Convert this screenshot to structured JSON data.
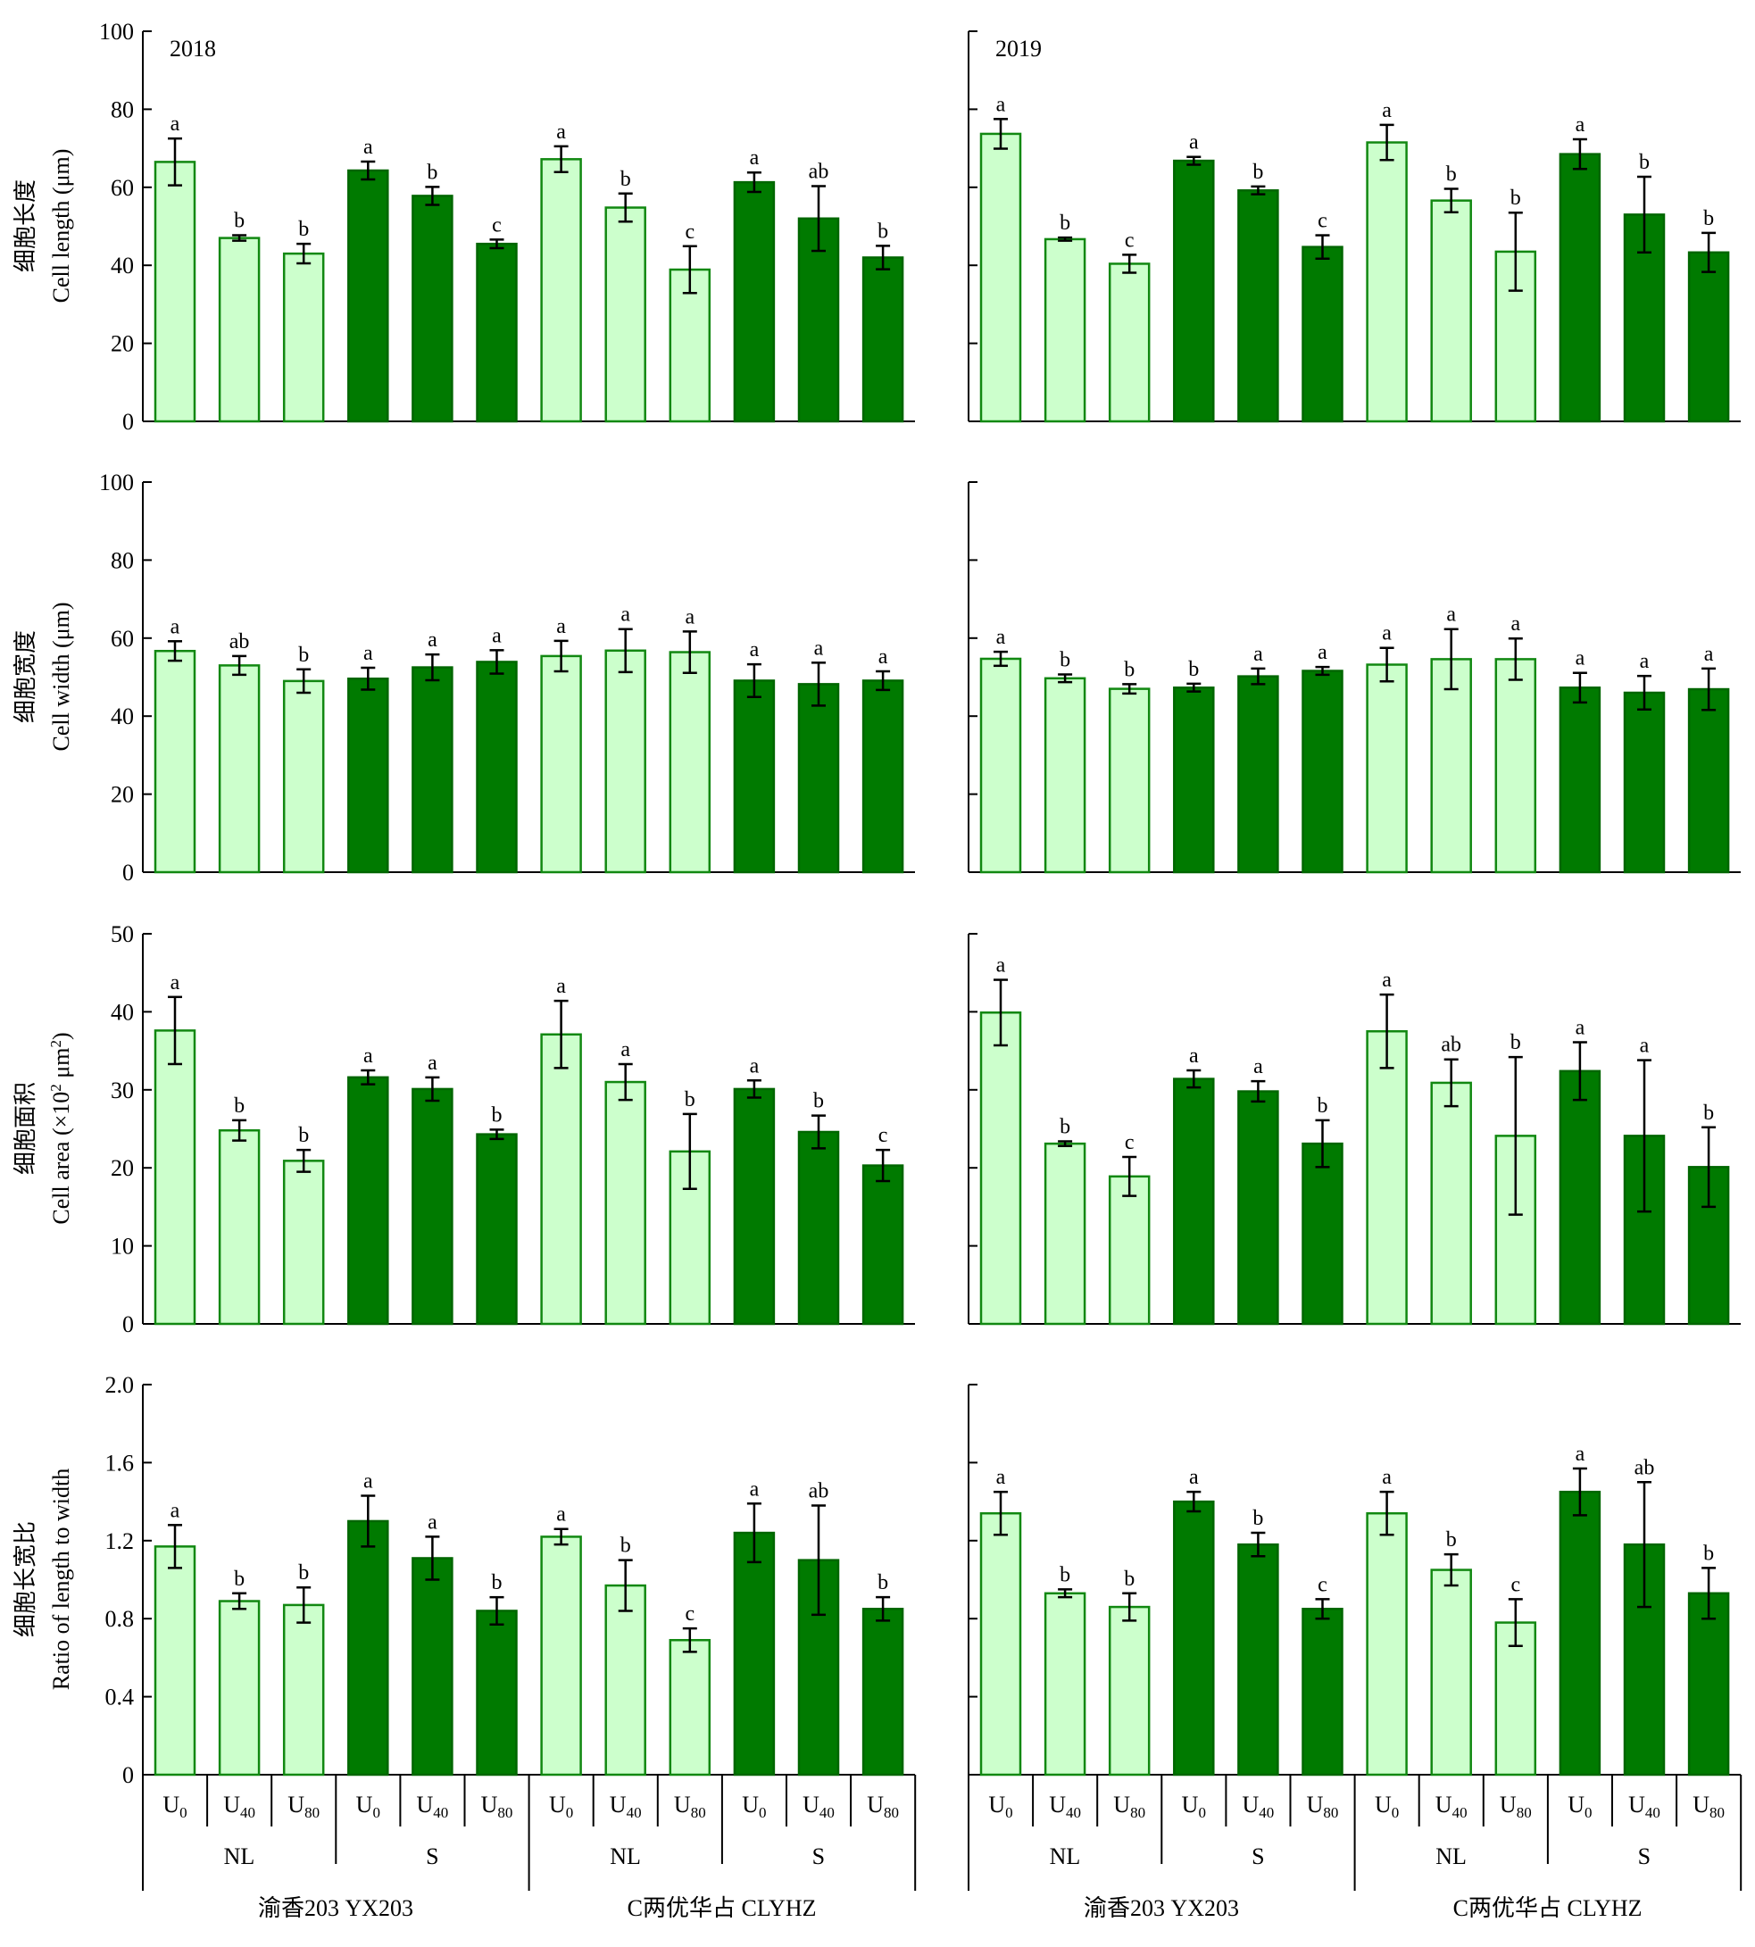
{
  "colors": {
    "light_fill": "#ccffcc",
    "light_stroke": "#118811",
    "dark_fill": "#007a00",
    "dark_stroke": "#006600",
    "axis": "#000000"
  },
  "figure": {
    "groups": [
      {
        "variety": "渝香203 YX203",
        "n_sub": "NL",
        "s_sub": "S"
      },
      {
        "variety": "C两优华占 CLYHZ",
        "n_sub": "NL",
        "s_sub": "S"
      }
    ],
    "treatments": [
      {
        "base": "U",
        "sub": "0"
      },
      {
        "base": "U",
        "sub": "40"
      },
      {
        "base": "U",
        "sub": "80"
      }
    ]
  },
  "chart_data": [
    {
      "type": "bar",
      "year": "2018",
      "ylabel_cn": "细胞长度",
      "ylabel_en": "Cell length (μm)",
      "ylim": [
        0,
        100
      ],
      "yticks": [
        "0",
        "20",
        "40",
        "60",
        "80",
        "100"
      ],
      "values": [
        66.5,
        47,
        43,
        64.3,
        57.8,
        45.5,
        67.2,
        54.8,
        38.9,
        61.3,
        52,
        42
      ],
      "errors": [
        6,
        0.7,
        2.5,
        2.3,
        2.3,
        1.1,
        3.3,
        3.6,
        6,
        2.5,
        8.3,
        3
      ],
      "letters": [
        "a",
        "b",
        "b",
        "a",
        "b",
        "c",
        "a",
        "b",
        "c",
        "a",
        "ab",
        "b"
      ]
    },
    {
      "type": "bar",
      "year": "2019",
      "ylabel_cn": "",
      "ylabel_en": "",
      "ylim": [
        0,
        100
      ],
      "yticks": [
        "",
        "",
        "",
        "",
        "",
        ""
      ],
      "values": [
        73.7,
        46.7,
        40.4,
        66.8,
        59.2,
        44.7,
        71.5,
        56.6,
        43.5,
        68.5,
        53,
        43.3
      ],
      "errors": [
        3.8,
        0.4,
        2.3,
        1,
        1,
        3,
        4.5,
        3,
        10,
        3.8,
        9.7,
        5
      ],
      "letters": [
        "a",
        "b",
        "c",
        "a",
        "b",
        "c",
        "a",
        "b",
        "b",
        "a",
        "b",
        "b"
      ]
    },
    {
      "type": "bar",
      "year": "",
      "ylabel_cn": "细胞宽度",
      "ylabel_en": "Cell width (μm)",
      "ylim": [
        0,
        100
      ],
      "yticks": [
        "0",
        "20",
        "40",
        "60",
        "80",
        "100"
      ],
      "values": [
        56.7,
        53,
        49,
        49.6,
        52.5,
        53.9,
        55.4,
        56.8,
        56.4,
        49.1,
        48.2,
        49.1
      ],
      "errors": [
        2.5,
        2.4,
        3,
        2.8,
        3.3,
        3,
        3.9,
        5.5,
        5.3,
        4.2,
        5.5,
        2.4
      ],
      "letters": [
        "a",
        "ab",
        "b",
        "a",
        "a",
        "a",
        "a",
        "a",
        "a",
        "a",
        "a",
        "a"
      ]
    },
    {
      "type": "bar",
      "year": "",
      "ylabel_cn": "",
      "ylabel_en": "",
      "ylim": [
        0,
        100
      ],
      "yticks": [
        "",
        "",
        "",
        "",
        "",
        ""
      ],
      "values": [
        54.7,
        49.7,
        47,
        47.3,
        50.2,
        51.6,
        53.2,
        54.6,
        54.6,
        47.3,
        46,
        46.9
      ],
      "errors": [
        1.8,
        1,
        1.2,
        1,
        2,
        1,
        4.3,
        7.7,
        5.3,
        3.8,
        4.3,
        5.3
      ],
      "letters": [
        "a",
        "b",
        "b",
        "b",
        "a",
        "a",
        "a",
        "a",
        "a",
        "a",
        "a",
        "a"
      ]
    },
    {
      "type": "bar",
      "year": "",
      "ylabel_cn": "细胞面积",
      "ylabel_en_pre": "Cell area (×10",
      "ylabel_en_sup": "2",
      "ylabel_en_mid": " μm",
      "ylabel_en_sup2": "2",
      "ylabel_en_post": ")",
      "ylim": [
        0,
        50
      ],
      "yticks": [
        "0",
        "10",
        "20",
        "30",
        "40",
        "50"
      ],
      "values": [
        37.6,
        24.8,
        20.9,
        31.6,
        30.1,
        24.3,
        37.1,
        31,
        22.1,
        30.1,
        24.6,
        20.3
      ],
      "errors": [
        4.3,
        1.3,
        1.4,
        0.9,
        1.5,
        0.6,
        4.3,
        2.3,
        4.8,
        1.1,
        2.1,
        2
      ],
      "letters": [
        "a",
        "b",
        "b",
        "a",
        "a",
        "b",
        "a",
        "a",
        "b",
        "a",
        "b",
        "c"
      ]
    },
    {
      "type": "bar",
      "year": "",
      "ylabel_cn": "",
      "ylabel_en_pre": "",
      "ylabel_en_sup": "",
      "ylabel_en_mid": "",
      "ylabel_en_sup2": "",
      "ylabel_en_post": "",
      "ylim": [
        0,
        50
      ],
      "yticks": [
        "",
        "",
        "",
        "",
        "",
        ""
      ],
      "values": [
        39.9,
        23.1,
        18.9,
        31.4,
        29.8,
        23.1,
        37.5,
        30.9,
        24.1,
        32.4,
        24.1,
        20.1
      ],
      "errors": [
        4.2,
        0.3,
        2.5,
        1.1,
        1.3,
        3,
        4.7,
        3,
        10.1,
        3.7,
        9.7,
        5.1
      ],
      "letters": [
        "a",
        "b",
        "c",
        "a",
        "a",
        "b",
        "a",
        "ab",
        "b",
        "a",
        "a",
        "b"
      ]
    },
    {
      "type": "bar",
      "year": "",
      "ylabel_cn": "细胞长宽比",
      "ylabel_en": "Ratio of length to width",
      "ylim": [
        0,
        2
      ],
      "yticks": [
        "0",
        "0.4",
        "0.8",
        "1.2",
        "1.6",
        "2.0"
      ],
      "values": [
        1.17,
        0.89,
        0.87,
        1.3,
        1.11,
        0.84,
        1.22,
        0.97,
        0.69,
        1.24,
        1.1,
        0.85
      ],
      "errors": [
        0.11,
        0.04,
        0.09,
        0.13,
        0.11,
        0.07,
        0.04,
        0.13,
        0.06,
        0.15,
        0.28,
        0.06
      ],
      "letters": [
        "a",
        "b",
        "b",
        "a",
        "a",
        "b",
        "a",
        "b",
        "c",
        "a",
        "ab",
        "b"
      ]
    },
    {
      "type": "bar",
      "year": "",
      "ylabel_cn": "",
      "ylabel_en": "",
      "ylim": [
        0,
        2
      ],
      "yticks": [
        "",
        "",
        "",
        "",
        "",
        ""
      ],
      "values": [
        1.34,
        0.93,
        0.86,
        1.4,
        1.18,
        0.85,
        1.34,
        1.05,
        0.78,
        1.45,
        1.18,
        0.93
      ],
      "errors": [
        0.11,
        0.02,
        0.07,
        0.05,
        0.06,
        0.05,
        0.11,
        0.08,
        0.12,
        0.12,
        0.32,
        0.13
      ],
      "letters": [
        "a",
        "b",
        "b",
        "a",
        "b",
        "c",
        "a",
        "b",
        "c",
        "a",
        "ab",
        "b"
      ]
    }
  ]
}
